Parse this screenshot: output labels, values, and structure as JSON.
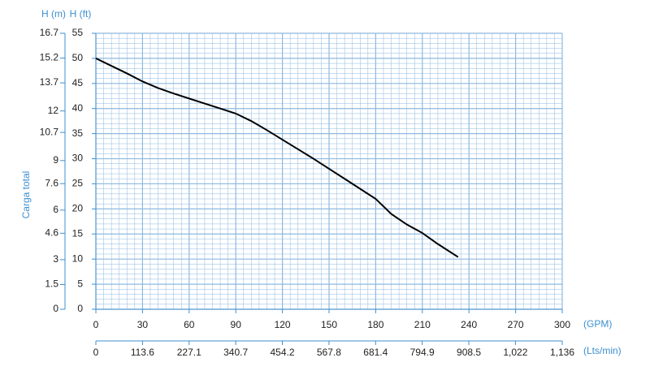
{
  "chart_data": {
    "type": "line",
    "y_label_m": "H (m)",
    "y_label_ft": "H (ft)",
    "y_title": "Carga total",
    "x_unit": "(GPM)",
    "x2_unit": "(Lts/min)",
    "x": [
      0,
      10,
      20,
      30,
      40,
      50,
      60,
      70,
      80,
      90,
      100,
      110,
      120,
      130,
      140,
      150,
      160,
      170,
      180,
      190,
      200,
      210,
      220,
      233
    ],
    "series": [
      {
        "color": "#000000",
        "values": [
          50,
          48.5,
          47,
          45.4,
          44.1,
          43,
          42,
          41,
          40,
          39,
          37.5,
          35.7,
          33.8,
          31.9,
          30,
          28,
          26,
          24,
          22,
          19,
          16.9,
          15.2,
          13,
          10.4
        ]
      }
    ],
    "xlim": [
      0,
      300
    ],
    "xticks": [
      0,
      30,
      60,
      90,
      120,
      150,
      180,
      210,
      240,
      270,
      300
    ],
    "x2lim": [
      0,
      1136
    ],
    "x2ticks": [
      0,
      113.6,
      227.1,
      340.7,
      454.2,
      567.8,
      681.4,
      794.9,
      908.5,
      {
        "value": 1022,
        "label": "1,022"
      },
      {
        "value": 1136,
        "label": "1,136"
      }
    ],
    "ylim": [
      0,
      55
    ],
    "yticks": [
      0,
      5,
      10,
      15,
      20,
      25,
      30,
      35,
      40,
      45,
      50,
      55
    ],
    "y2lim": [
      0,
      16.7
    ],
    "y2ticks": [
      0,
      1.5,
      3,
      4.6,
      6,
      7.6,
      9,
      10.7,
      12,
      13.7,
      15.2,
      16.7
    ],
    "grid": true,
    "grid_color": "#8db9e0",
    "axis_color": "#3d8fd1"
  }
}
